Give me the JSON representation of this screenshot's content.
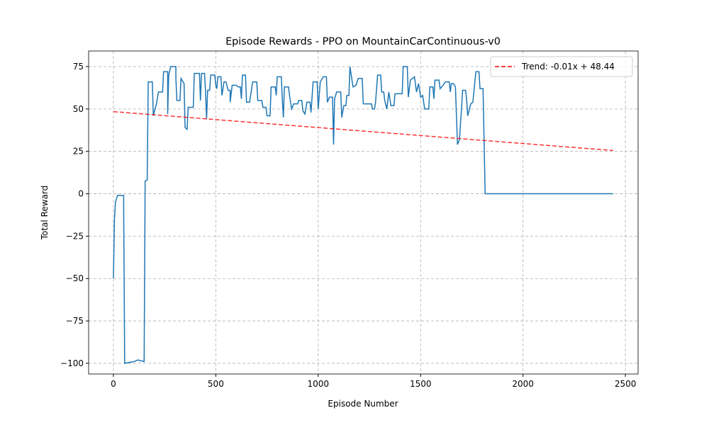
{
  "chart_data": {
    "type": "line",
    "title": "Episode Rewards - PPO on MountainCarContinuous-v0",
    "xlabel": "Episode Number",
    "ylabel": "Total Reward",
    "xlim": [
      -121,
      2562
    ],
    "ylim": [
      -106.3,
      84.2
    ],
    "xticks": [
      0,
      500,
      1000,
      1500,
      2000,
      2500
    ],
    "yticks": [
      {
        "value": -100,
        "label": "−100"
      },
      {
        "value": -75,
        "label": "−75"
      },
      {
        "value": -50,
        "label": "−50"
      },
      {
        "value": -25,
        "label": "−25"
      },
      0,
      25,
      50,
      75
    ],
    "grid": true,
    "legend": "upper right",
    "series": [
      {
        "color": "#1f77b4",
        "linestyle": "solid",
        "x": [
          0,
          5,
          10,
          20,
          50,
          50,
          55,
          100,
          120,
          150,
          155,
          165,
          170,
          190,
          195,
          210,
          220,
          240,
          245,
          265,
          265,
          270,
          280,
          305,
          305,
          310,
          325,
          330,
          345,
          350,
          360,
          365,
          390,
          395,
          420,
          425,
          430,
          445,
          450,
          455,
          460,
          470,
          475,
          495,
          500,
          505,
          510,
          525,
          530,
          540,
          550,
          560,
          570,
          570,
          580,
          600,
          610,
          620,
          625,
          630,
          645,
          650,
          665,
          680,
          700,
          705,
          725,
          730,
          745,
          750,
          765,
          770,
          790,
          795,
          800,
          820,
          825,
          830,
          835,
          855,
          860,
          870,
          880,
          900,
          905,
          920,
          925,
          935,
          945,
          960,
          965,
          975,
          995,
          1000,
          1010,
          1025,
          1040,
          1045,
          1055,
          1070,
          1075,
          1080,
          1090,
          1110,
          1115,
          1125,
          1135,
          1140,
          1150,
          1155,
          1170,
          1185,
          1195,
          1215,
          1220,
          1260,
          1265,
          1275,
          1280,
          1290,
          1305,
          1310,
          1320,
          1325,
          1335,
          1345,
          1355,
          1370,
          1375,
          1410,
          1415,
          1435,
          1440,
          1450,
          1470,
          1480,
          1490,
          1495,
          1500,
          1510,
          1520,
          1540,
          1545,
          1560,
          1565,
          1570,
          1590,
          1595,
          1610,
          1620,
          1640,
          1645,
          1650,
          1660,
          1670,
          1680,
          1690,
          1695,
          1700,
          1705,
          1720,
          1725,
          1730,
          1745,
          1755,
          1770,
          1785,
          1790,
          1805,
          1815,
          2440
        ],
        "values": [
          -50,
          -15,
          -5,
          -1,
          -1,
          -5,
          -100,
          -99,
          -98,
          -99,
          7.5,
          8,
          66,
          66,
          46,
          53,
          60,
          60,
          72,
          72,
          47,
          70,
          75,
          75,
          68,
          55,
          55,
          68,
          65,
          39,
          38,
          51,
          51,
          71,
          71,
          55,
          71,
          71,
          60,
          44,
          61,
          61,
          70,
          70,
          64,
          62,
          69,
          69,
          58,
          66,
          66,
          61,
          61,
          54,
          64,
          64,
          63,
          63,
          56,
          70,
          70,
          54,
          54,
          66,
          66,
          55,
          55,
          51,
          51,
          46,
          46,
          63,
          63,
          58,
          69,
          69,
          55,
          45,
          63,
          63,
          58,
          50,
          53,
          53,
          55,
          55,
          49,
          47,
          54,
          54,
          48,
          66,
          66,
          50,
          66,
          69,
          69,
          54,
          57,
          57,
          29,
          56,
          60,
          60,
          45,
          52,
          52,
          58,
          58,
          75,
          63,
          64,
          68,
          68,
          53,
          53,
          50,
          50,
          54,
          70,
          70,
          60,
          60,
          55,
          50,
          60,
          52,
          52,
          59,
          59,
          75,
          75,
          57,
          67,
          69,
          60,
          65,
          61,
          57,
          58,
          50,
          50,
          63,
          63,
          56,
          67,
          67,
          62,
          64,
          66,
          66,
          60,
          65,
          65,
          63,
          29,
          32,
          42,
          50,
          61,
          61,
          55,
          46,
          53,
          54,
          72,
          72,
          62,
          62,
          0,
          0
        ]
      },
      {
        "name": "Trend: -0.01x + 48.44",
        "color": "#ff0000",
        "linestyle": "dashed",
        "x": [
          0,
          2440
        ],
        "values": [
          48.44,
          25.5
        ]
      }
    ]
  }
}
